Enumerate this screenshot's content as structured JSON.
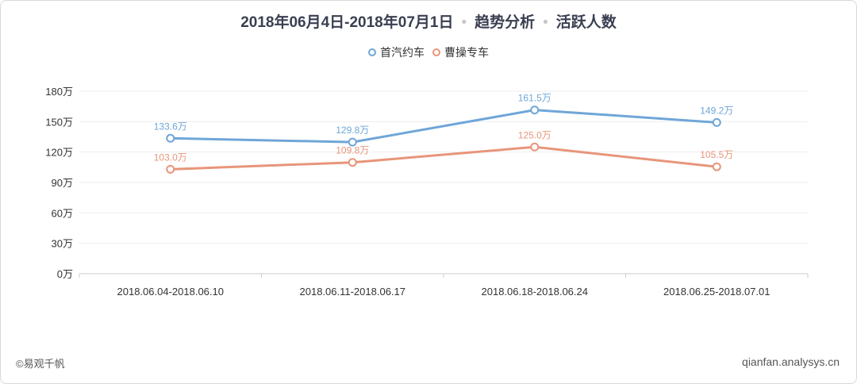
{
  "header": {
    "date_range": "2018年06月4日-2018年07月1日",
    "section": "趋势分析",
    "metric": "活跃人数"
  },
  "footer": {
    "copyright": "©易观千帆",
    "site": "qianfan.analysys.cn"
  },
  "colors": {
    "series_1": "#6fa6d8",
    "series_2": "#e8957a",
    "axis_text": "#333333",
    "grid": "#eeeeee"
  },
  "chart_data": {
    "type": "line",
    "title": "",
    "xlabel": "",
    "ylabel": "",
    "categories": [
      "2018.06.04-2018.06.10",
      "2018.06.11-2018.06.17",
      "2018.06.18-2018.06.24",
      "2018.06.25-2018.07.01"
    ],
    "y_ticks": [
      "0万",
      "30万",
      "60万",
      "90万",
      "120万",
      "150万",
      "180万"
    ],
    "ylim": [
      0,
      180
    ],
    "unit": "万",
    "grid": true,
    "legend_position": "top-center",
    "series": [
      {
        "name": "首汽约车",
        "values": [
          133.6,
          129.8,
          161.5,
          149.2
        ],
        "labels": [
          "133.6万",
          "129.8万",
          "161.5万",
          "149.2万"
        ]
      },
      {
        "name": "曹操专车",
        "values": [
          103.0,
          109.8,
          125.0,
          105.5
        ],
        "labels": [
          "103.0万",
          "109.8万",
          "125.0万",
          "105.5万"
        ]
      }
    ]
  }
}
